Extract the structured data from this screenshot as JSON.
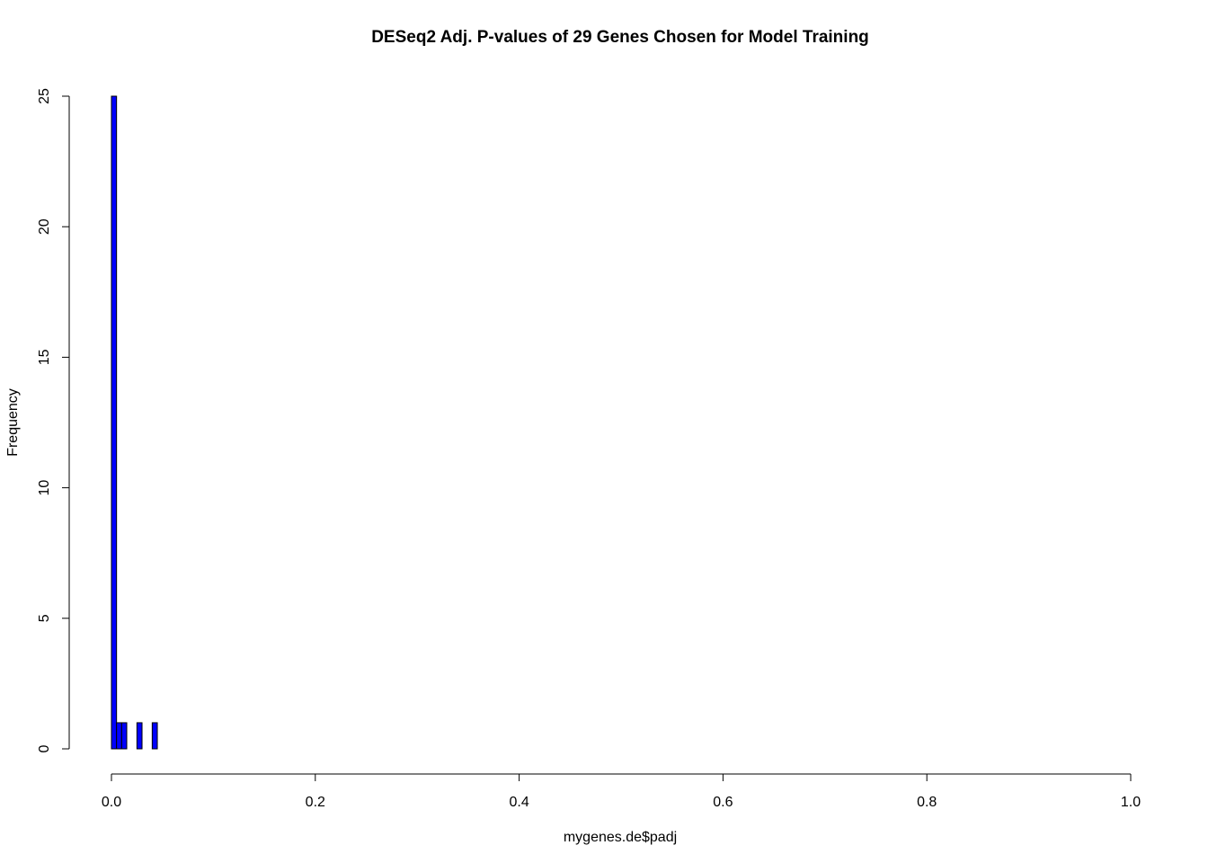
{
  "chart_data": {
    "type": "bar",
    "subtype": "histogram",
    "title": "DESeq2 Adj. P-values of 29 Genes Chosen for Model Training",
    "xlabel": "mygenes.de$padj",
    "ylabel": "Frequency",
    "xlim": [
      0,
      1
    ],
    "ylim": [
      0,
      25
    ],
    "bin_width": 0.005,
    "x_ticks": [
      0,
      0.2,
      0.4,
      0.6,
      0.8,
      1
    ],
    "x_tick_labels": [
      "0.0",
      "0.2",
      "0.4",
      "0.6",
      "0.8",
      "1.0"
    ],
    "y_ticks": [
      0,
      5,
      10,
      15,
      20,
      25
    ],
    "y_tick_labels": [
      "0",
      "5",
      "10",
      "15",
      "20",
      "25"
    ],
    "bins": [
      {
        "start": 0.0,
        "end": 0.005,
        "count": 25
      },
      {
        "start": 0.005,
        "end": 0.01,
        "count": 1
      },
      {
        "start": 0.01,
        "end": 0.015,
        "count": 1
      },
      {
        "start": 0.015,
        "end": 0.02,
        "count": 0
      },
      {
        "start": 0.02,
        "end": 0.025,
        "count": 0
      },
      {
        "start": 0.025,
        "end": 0.03,
        "count": 1
      },
      {
        "start": 0.03,
        "end": 0.035,
        "count": 0
      },
      {
        "start": 0.035,
        "end": 0.04,
        "count": 0
      },
      {
        "start": 0.04,
        "end": 0.045,
        "count": 1
      }
    ],
    "bar_color": "#0000ff",
    "bar_border_color": "#000000",
    "grid": false,
    "legend": "none"
  }
}
